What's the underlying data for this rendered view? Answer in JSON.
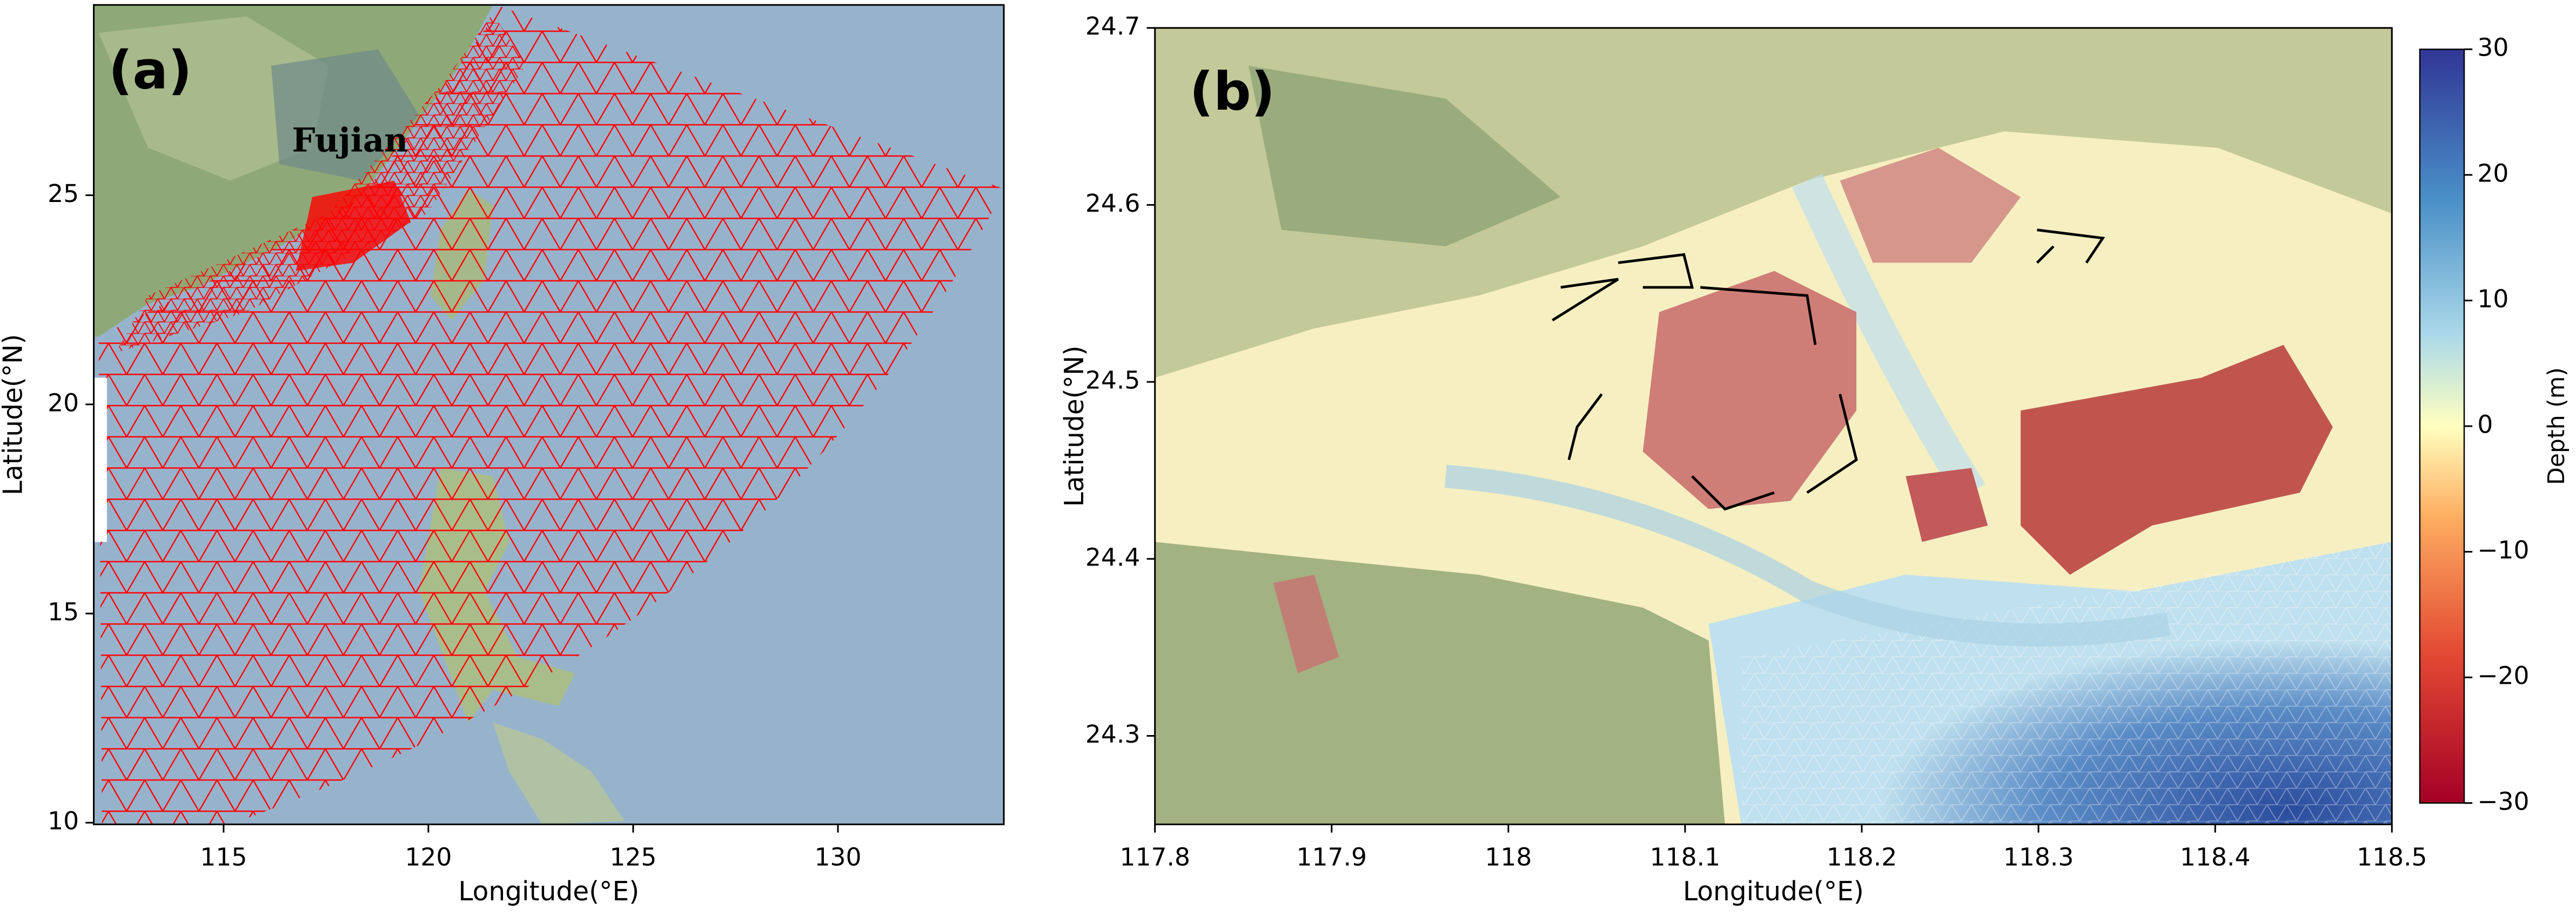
{
  "chart_data": [
    {
      "type": "map",
      "panel_label": "(a)",
      "annotations": [
        "Fujian"
      ],
      "xlabel": "Longitude(°E)",
      "ylabel": "Latitude(°N)",
      "xlim": [
        111.83,
        134.05
      ],
      "ylim": [
        9.96,
        29.55
      ],
      "xticks": [
        115,
        120,
        125,
        130
      ],
      "yticks": [
        10,
        15,
        20,
        25
      ]
    },
    {
      "type": "map",
      "panel_label": "(b)",
      "xlabel": "Longitude(°E)",
      "ylabel": "Latitude(°N)",
      "xlim": [
        117.8,
        118.5
      ],
      "ylim": [
        24.25,
        24.7
      ],
      "xticks": [
        117.8,
        117.9,
        118.0,
        118.1,
        118.2,
        118.3,
        118.4,
        118.5
      ],
      "yticks": [
        24.3,
        24.4,
        24.5,
        24.6,
        24.7
      ],
      "colorbar": {
        "label": "Depth (m)",
        "lim": [
          -30,
          30
        ],
        "ticks": [
          {
            "value": -30,
            "label": "−30"
          },
          {
            "value": -20,
            "label": "−20"
          },
          {
            "value": -10,
            "label": "−10"
          },
          0,
          10,
          20,
          30
        ]
      }
    }
  ]
}
